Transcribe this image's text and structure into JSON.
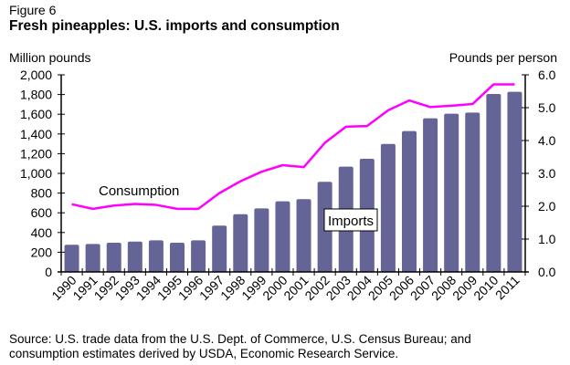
{
  "figure_label": "Figure 6",
  "source": {
    "line1": "Source: U.S. trade data from the U.S. Dept. of Commerce, U.S. Census Bureau; and",
    "line2": "consumption estimates derived by USDA, Economic Research Service."
  },
  "chart_data": {
    "type": "bar",
    "title": "Fresh pineapples: U.S. imports and consumption",
    "categories": [
      "1990",
      "1991",
      "1992",
      "1993",
      "1994",
      "1995",
      "1996",
      "1997",
      "1998",
      "1999",
      "2000",
      "2001",
      "2002",
      "2003",
      "2004",
      "2005",
      "2006",
      "2007",
      "2008",
      "2009",
      "2010",
      "2011"
    ],
    "series": [
      {
        "name": "Imports",
        "type": "bar",
        "axis": "left",
        "color": "#646496",
        "values": [
          275,
          284,
          296,
          308,
          321,
          296,
          321,
          470,
          586,
          645,
          716,
          738,
          914,
          1068,
          1148,
          1299,
          1429,
          1559,
          1605,
          1617,
          1806,
          1827
        ]
      },
      {
        "name": "Consumption",
        "type": "line",
        "axis": "right",
        "color": "#ff00ff",
        "values": [
          2.06,
          1.92,
          2.02,
          2.07,
          2.04,
          1.92,
          1.92,
          2.4,
          2.76,
          3.05,
          3.25,
          3.19,
          3.93,
          4.42,
          4.44,
          4.92,
          5.22,
          5.02,
          5.06,
          5.11,
          5.71,
          5.71
        ]
      }
    ],
    "left_axis": {
      "label": "Million pounds",
      "ylim": [
        0,
        2000
      ],
      "ticks": [
        "0",
        "200",
        "400",
        "600",
        "800",
        "1,000",
        "1,200",
        "1,400",
        "1,600",
        "1,800",
        "2,000"
      ]
    },
    "right_axis": {
      "label": "Pounds per person",
      "ylim": [
        0,
        6.0
      ],
      "ticks": [
        "0.0",
        "1.0",
        "2.0",
        "3.0",
        "4.0",
        "5.0",
        "6.0"
      ]
    },
    "annotations": [
      {
        "text": "Consumption",
        "target": "Consumption",
        "boxed": false
      },
      {
        "text": "Imports",
        "target": "Imports",
        "boxed": true
      }
    ],
    "grid": false,
    "legend": "none"
  }
}
